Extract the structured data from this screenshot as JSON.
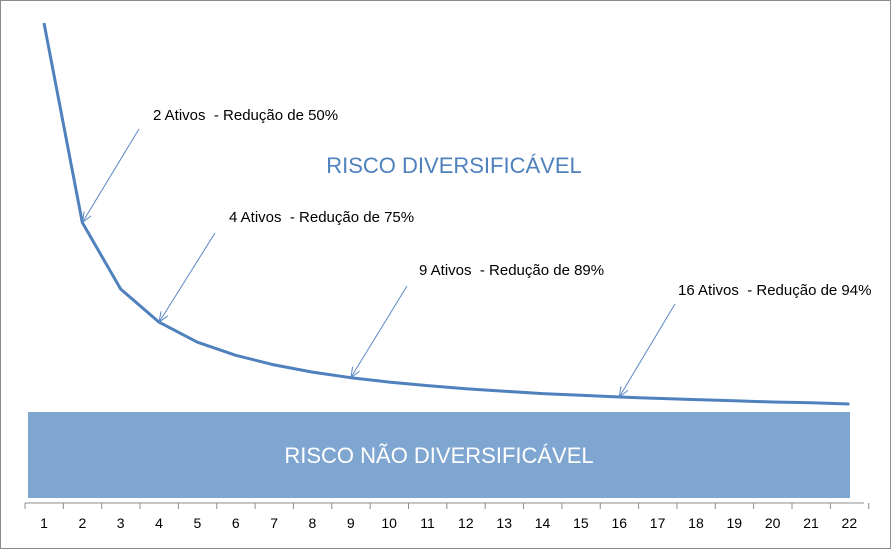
{
  "chart_data": {
    "type": "line",
    "x": [
      1,
      2,
      3,
      4,
      5,
      6,
      7,
      8,
      9,
      10,
      11,
      12,
      13,
      14,
      15,
      16,
      17,
      18,
      19,
      20,
      21,
      22
    ],
    "series": [
      {
        "values": [
          100.0,
          50.0,
          33.3,
          25.0,
          20.0,
          16.7,
          14.3,
          12.5,
          11.1,
          10.0,
          9.1,
          8.3,
          7.7,
          7.1,
          6.7,
          6.25,
          5.9,
          5.6,
          5.3,
          5.0,
          4.8,
          4.5
        ]
      }
    ],
    "ylim": [
      0,
      100
    ],
    "grid": false,
    "regions": {
      "diversifiable": "RISCO DIVERSIFICÁVEL",
      "non_diversifiable": "RISCO NÃO DIVERSIFICÁVEL"
    },
    "annotations": [
      {
        "x": 2,
        "text": "2 Ativos  - Redução de 50%"
      },
      {
        "x": 4,
        "text": "4 Ativos  - Redução de 75%"
      },
      {
        "x": 9,
        "text": "9 Ativos  - Redução de 89%"
      },
      {
        "x": 16,
        "text": "16 Ativos  - Redução de 94%"
      }
    ],
    "colors": {
      "line": "#4f81bd",
      "band": "#7fa6d1",
      "band_text": "#ffffff",
      "region_text": "#4f81bd",
      "arrow": "#5b87c5"
    }
  }
}
